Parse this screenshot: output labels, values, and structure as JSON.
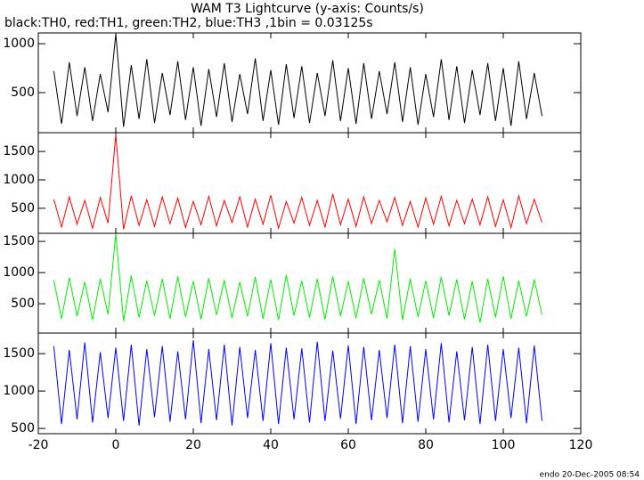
{
  "chart_data": {
    "type": "line",
    "title": "WAM T3 Lightcurve (y-axis: Counts/s)",
    "subtitle": "black:TH0, red:TH1, green:TH2, blue:TH3 ,1bin = 0.03125s",
    "footer": "endo 20-Dec-2005 08:54",
    "x": [
      -16,
      -14,
      -12,
      -10,
      -8,
      -6,
      -4,
      -2,
      0,
      2,
      4,
      6,
      8,
      10,
      12,
      14,
      16,
      18,
      20,
      22,
      24,
      26,
      28,
      30,
      32,
      34,
      36,
      38,
      40,
      42,
      44,
      46,
      48,
      50,
      52,
      54,
      56,
      58,
      60,
      62,
      64,
      66,
      68,
      70,
      72,
      74,
      76,
      78,
      80,
      82,
      84,
      86,
      88,
      90,
      92,
      94,
      96,
      98,
      100,
      102,
      104,
      106,
      108,
      110
    ],
    "xlim": [
      -20,
      120
    ],
    "xticks": [
      -20,
      0,
      20,
      40,
      60,
      80,
      100,
      120
    ],
    "panels": [
      {
        "ylim": [
          90,
          1110
        ],
        "yticks": [
          500,
          1000
        ],
        "series": [
          {
            "color": "#000000",
            "values": [
              720,
              180,
              810,
              260,
              760,
              210,
              690,
              300,
              1100,
              150,
              780,
              230,
              840,
              190,
              700,
              270,
              820,
              220,
              760,
              160,
              740,
              250,
              800,
              200,
              690,
              280,
              850,
              210,
              730,
              170,
              790,
              240,
              770,
              190,
              700,
              260,
              830,
              210,
              750,
              180,
              800,
              230,
              720,
              280,
              810,
              200,
              760,
              170,
              690,
              250,
              840,
              220,
              770,
              190,
              730,
              270,
              800,
              210,
              750,
              160,
              820,
              230,
              700,
              260
            ]
          }
        ]
      },
      {
        "ylim": [
          60,
          1830
        ],
        "yticks": [
          500,
          1000,
          1500
        ],
        "series": [
          {
            "color": "#ff0000",
            "values": [
              660,
              170,
              700,
              220,
              640,
              150,
              690,
              240,
              1800,
              130,
              720,
              200,
              650,
              180,
              700,
              230,
              680,
              160,
              620,
              210,
              710,
              190,
              640,
              250,
              700,
              170,
              660,
              220,
              730,
              150,
              620,
              240,
              690,
              200,
              640,
              170,
              750,
              210,
              660,
              180,
              700,
              230,
              640,
              260,
              690,
              200,
              620,
              170,
              680,
              220,
              710,
              190,
              640,
              230,
              660,
              210,
              700,
              180,
              650,
              160,
              720,
              230,
              660,
              250
            ]
          }
        ]
      },
      {
        "ylim": [
          30,
          1630
        ],
        "yticks": [
          500,
          1000,
          1500
        ],
        "series": [
          {
            "color": "#00ee00",
            "values": [
              880,
              260,
              920,
              300,
              850,
              240,
              900,
              330,
              1620,
              220,
              950,
              280,
              870,
              310,
              900,
              260,
              940,
              290,
              860,
              250,
              910,
              320,
              880,
              270,
              850,
              300,
              930,
              260,
              890,
              240,
              960,
              310,
              870,
              280,
              900,
              250,
              940,
              300,
              860,
              270,
              910,
              330,
              880,
              260,
              1380,
              240,
              900,
              290,
              870,
              270,
              930,
              310,
              890,
              250,
              860,
              200,
              900,
              280,
              940,
              260,
              870,
              300,
              890,
              320
            ]
          }
        ]
      },
      {
        "ylim": [
          430,
          1775
        ],
        "yticks": [
          500,
          1000,
          1500
        ],
        "series": [
          {
            "color": "#0000ff",
            "values": [
              1600,
              560,
              1550,
              620,
              1650,
              580,
              1520,
              640,
              1580,
              600,
              1620,
              540,
              1560,
              650,
              1600,
              590,
              1530,
              620,
              1680,
              570,
              1560,
              610,
              1620,
              540,
              1590,
              640,
              1550,
              600,
              1640,
              560,
              1580,
              620,
              1570,
              580,
              1660,
              600,
              1540,
              630,
              1610,
              560,
              1590,
              610,
              1550,
              640,
              1620,
              570,
              1600,
              590,
              1560,
              620,
              1640,
              580,
              1530,
              610,
              1590,
              560,
              1620,
              600,
              1560,
              640,
              1580,
              570,
              1610,
              600
            ]
          }
        ]
      }
    ]
  }
}
